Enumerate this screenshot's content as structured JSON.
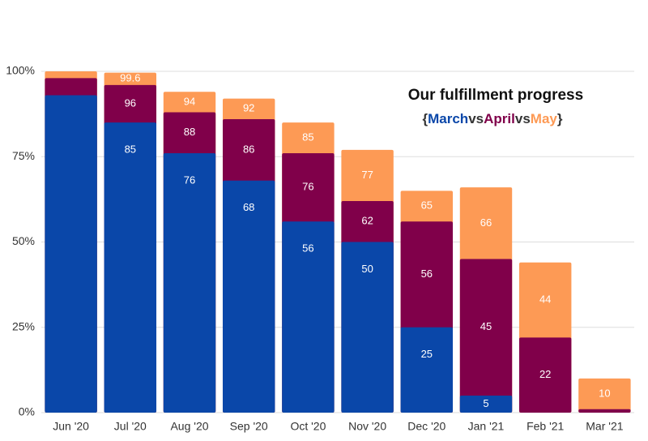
{
  "chart_data": {
    "type": "bar",
    "layout": "overlapping",
    "title": "Our fulfillment progress",
    "legend_text": {
      "open": "{",
      "sep": "vs",
      "close": "}"
    },
    "categories": [
      "Jun '20",
      "Jul '20",
      "Aug '20",
      "Sep '20",
      "Oct '20",
      "Nov '20",
      "Dec '20",
      "Jan '21",
      "Feb '21",
      "Mar '21"
    ],
    "series": [
      {
        "name": "March",
        "color": "#0a47a9",
        "values": [
          93,
          85,
          76,
          68,
          56,
          50,
          25,
          5,
          0,
          0
        ],
        "value_labels": [
          null,
          "85",
          "76",
          "68",
          "56",
          "50",
          "25",
          "5",
          null,
          null
        ]
      },
      {
        "name": "April",
        "color": "#80004a",
        "values": [
          98,
          96,
          88,
          86,
          76,
          62,
          56,
          45,
          22,
          1
        ],
        "value_labels": [
          null,
          "96",
          "88",
          "86",
          "76",
          "62",
          "56",
          "45",
          "22",
          null
        ]
      },
      {
        "name": "May",
        "color": "#fd9a55",
        "values": [
          100,
          99.6,
          94,
          92,
          85,
          77,
          65,
          66,
          44,
          10
        ],
        "value_labels": [
          null,
          "99.6",
          "94",
          "92",
          "85",
          "77",
          "65",
          "66",
          "44",
          "10"
        ]
      }
    ],
    "ylim": [
      0,
      100
    ],
    "yticks": [
      {
        "value": 0,
        "label": "0%"
      },
      {
        "value": 25,
        "label": "25%"
      },
      {
        "value": 50,
        "label": "50%"
      },
      {
        "value": 75,
        "label": "75%"
      },
      {
        "value": 100,
        "label": "100%"
      }
    ],
    "grid": true
  }
}
